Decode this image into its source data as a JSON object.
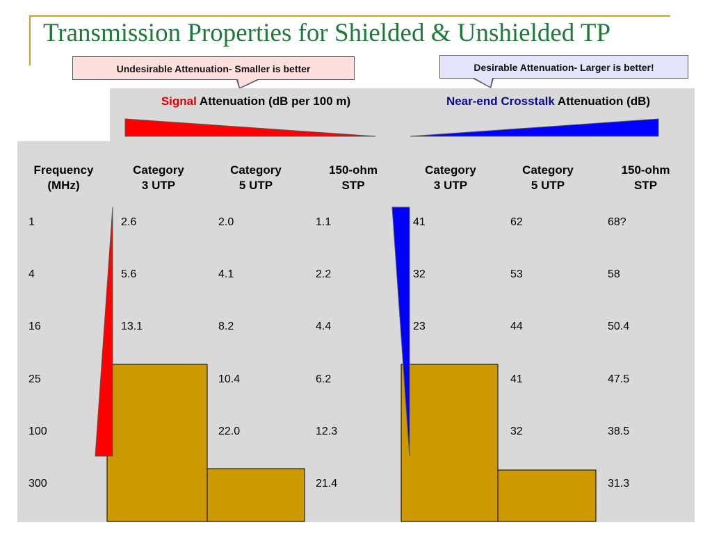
{
  "slide": {
    "title": "Transmission Properties for Shielded & Unshielded TP"
  },
  "callouts": {
    "left": "Undesirable Attenuation- Smaller is better",
    "right": "Desirable Attenuation- Larger is better!"
  },
  "groups": {
    "signal": {
      "highlight": "Signal",
      "rest": " Attenuation (dB per 100 m)"
    },
    "crosstalk": {
      "highlight": "Near-end Crosstalk",
      "rest": " Attenuation (dB)"
    }
  },
  "columns": [
    "Frequency (MHz)",
    "Category 3 UTP",
    "Category 5 UTP",
    "150-ohm STP",
    "Category 3 UTP",
    "Category 5 UTP",
    "150-ohm STP"
  ],
  "rows": [
    [
      "1",
      "2.6",
      "2.0",
      "1.1",
      "41",
      "62",
      "68?"
    ],
    [
      "4",
      "5.6",
      "4.1",
      "2.2",
      "32",
      "53",
      "58"
    ],
    [
      "16",
      "13.1",
      "8.2",
      "4.4",
      "23",
      "44",
      "50.4"
    ],
    [
      "25",
      "",
      "10.4",
      "6.2",
      "",
      "41",
      "47.5"
    ],
    [
      "100",
      "",
      "22.0",
      "12.3",
      "",
      "32",
      "38.5"
    ],
    [
      "300",
      "",
      "",
      "21.4",
      "",
      "",
      "31.3"
    ]
  ],
  "colors": {
    "title": "#1f7a3a",
    "signal_wedge": "#ff0000",
    "crosstalk_wedge": "#0000ff",
    "filler_block": "#cc9900",
    "cell_bg": "#d9d9d9"
  }
}
